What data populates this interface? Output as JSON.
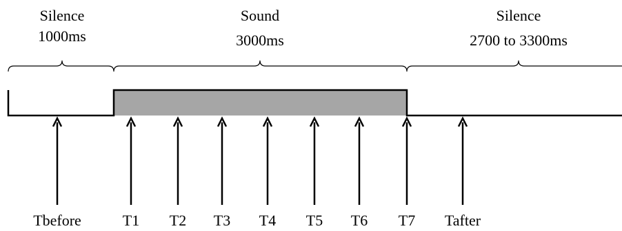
{
  "segments": [
    {
      "title": "Silence",
      "duration": "1000ms"
    },
    {
      "title": "Sound",
      "duration": "3000ms"
    },
    {
      "title": "Silence",
      "duration": "2700 to 3300ms"
    }
  ],
  "timepoints": [
    "Tbefore",
    "T1",
    "T2",
    "T3",
    "T4",
    "T5",
    "T6",
    "T7",
    "Tafter"
  ],
  "colors": {
    "sound_fill": "#a6a6a6",
    "line": "#000000"
  }
}
